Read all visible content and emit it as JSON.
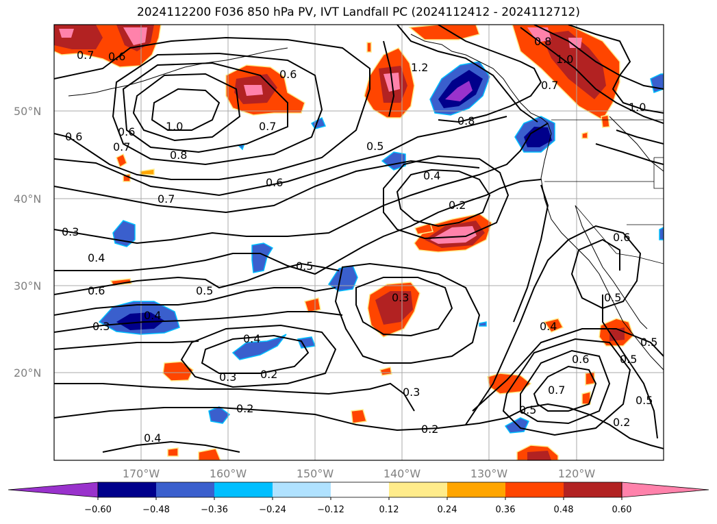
{
  "title": "2024112200 F036 850 hPa PV, IVT Landfall PC (2024112412 - 2024112712)",
  "lat_labels": [
    "50°N",
    "40°N",
    "30°N",
    "20°N"
  ],
  "lon_labels": [
    "170°W",
    "160°W",
    "150°W",
    "140°W",
    "130°W",
    "120°W"
  ],
  "colorbar": {
    "colors": [
      "#9932cc",
      "#00008b",
      "#3a5fcd",
      "#00bfff",
      "#b0e2ff",
      "#ffffff",
      "#ffec8b",
      "#ffa500",
      "#ff4500",
      "#b22222",
      "#ff82ab"
    ],
    "ticks": [
      "−0.60",
      "−0.48",
      "−0.36",
      "−0.24",
      "−0.12",
      "0.12",
      "0.24",
      "0.36",
      "0.48",
      "0.60"
    ]
  },
  "contour_labels": [
    "0.7",
    "0.6",
    "0.6",
    "1.2",
    "0.8",
    "1.0",
    "0.8",
    "1.0",
    "0.7",
    "0.6",
    "0.6",
    "0.7",
    "1.0",
    "0.8",
    "0.7",
    "0.5",
    "0.6",
    "0.4",
    "0.2",
    "0.3",
    "0.7",
    "0.4",
    "0.5",
    "0.6",
    "0.5",
    "0.3",
    "0.3",
    "0.4",
    "0.4",
    "0.3",
    "0.2",
    "0.3",
    "0.2",
    "0.2",
    "0.4",
    "0.6",
    "0.5",
    "0.7",
    "0.5",
    "0.5",
    "0.2",
    "0.5",
    "0.6",
    "0.5",
    "0.4"
  ]
}
